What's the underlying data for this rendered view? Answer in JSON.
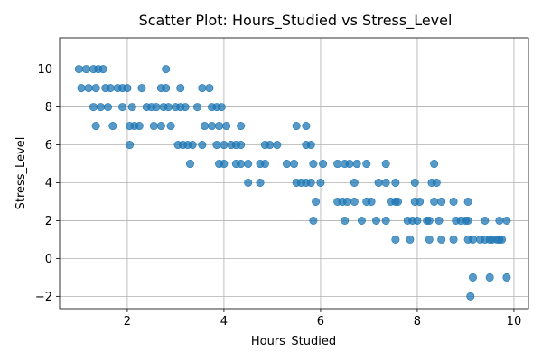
{
  "chart_data": {
    "type": "scatter",
    "title": "Scatter Plot: Hours_Studied vs Stress_Level",
    "xlabel": "Hours_Studied",
    "ylabel": "Stress_Level",
    "xlim": [
      0.6,
      10.3
    ],
    "ylim": [
      -2.65,
      11.65
    ],
    "xticks": [
      2,
      4,
      6,
      8,
      10
    ],
    "yticks": [
      -2,
      0,
      2,
      4,
      6,
      8,
      10
    ],
    "grid": true,
    "color": "#1f77b4",
    "alpha": 0.75,
    "points": [
      [
        1.0,
        10
      ],
      [
        1.15,
        10
      ],
      [
        1.3,
        10
      ],
      [
        1.4,
        10
      ],
      [
        1.5,
        10
      ],
      [
        2.8,
        10
      ],
      [
        1.05,
        9
      ],
      [
        1.2,
        9
      ],
      [
        1.35,
        9
      ],
      [
        1.55,
        9
      ],
      [
        1.65,
        9
      ],
      [
        1.8,
        9
      ],
      [
        1.9,
        9
      ],
      [
        2.0,
        9
      ],
      [
        2.3,
        9
      ],
      [
        2.7,
        9
      ],
      [
        2.8,
        9
      ],
      [
        3.1,
        9
      ],
      [
        3.55,
        9
      ],
      [
        3.7,
        9
      ],
      [
        1.3,
        8
      ],
      [
        1.45,
        8
      ],
      [
        1.6,
        8
      ],
      [
        1.9,
        8
      ],
      [
        2.1,
        8
      ],
      [
        2.4,
        8
      ],
      [
        2.5,
        8
      ],
      [
        2.6,
        8
      ],
      [
        2.75,
        8
      ],
      [
        2.85,
        8
      ],
      [
        3.0,
        8
      ],
      [
        3.1,
        8
      ],
      [
        3.2,
        8
      ],
      [
        3.45,
        8
      ],
      [
        3.75,
        8
      ],
      [
        3.85,
        8
      ],
      [
        3.95,
        8
      ],
      [
        1.35,
        7
      ],
      [
        1.7,
        7
      ],
      [
        2.05,
        7
      ],
      [
        2.15,
        7
      ],
      [
        2.25,
        7
      ],
      [
        2.55,
        7
      ],
      [
        2.7,
        7
      ],
      [
        2.9,
        7
      ],
      [
        3.6,
        7
      ],
      [
        3.75,
        7
      ],
      [
        3.9,
        7
      ],
      [
        4.05,
        7
      ],
      [
        4.35,
        7
      ],
      [
        5.5,
        7
      ],
      [
        5.7,
        7
      ],
      [
        2.05,
        6
      ],
      [
        3.05,
        6
      ],
      [
        3.15,
        6
      ],
      [
        3.25,
        6
      ],
      [
        3.35,
        6
      ],
      [
        3.55,
        6
      ],
      [
        3.85,
        6
      ],
      [
        4.0,
        6
      ],
      [
        4.15,
        6
      ],
      [
        4.25,
        6
      ],
      [
        4.35,
        6
      ],
      [
        4.85,
        6
      ],
      [
        4.95,
        6
      ],
      [
        5.1,
        6
      ],
      [
        5.7,
        6
      ],
      [
        5.8,
        6
      ],
      [
        3.3,
        5
      ],
      [
        3.9,
        5
      ],
      [
        4.0,
        5
      ],
      [
        4.25,
        5
      ],
      [
        4.35,
        5
      ],
      [
        4.5,
        5
      ],
      [
        4.75,
        5
      ],
      [
        4.85,
        5
      ],
      [
        5.3,
        5
      ],
      [
        5.45,
        5
      ],
      [
        5.85,
        5
      ],
      [
        6.05,
        5
      ],
      [
        6.35,
        5
      ],
      [
        6.5,
        5
      ],
      [
        6.6,
        5
      ],
      [
        6.75,
        5
      ],
      [
        6.95,
        5
      ],
      [
        7.35,
        5
      ],
      [
        8.35,
        5
      ],
      [
        4.5,
        4
      ],
      [
        4.75,
        4
      ],
      [
        5.5,
        4
      ],
      [
        5.6,
        4
      ],
      [
        5.7,
        4
      ],
      [
        5.8,
        4
      ],
      [
        6.0,
        4
      ],
      [
        6.7,
        4
      ],
      [
        7.2,
        4
      ],
      [
        7.35,
        4
      ],
      [
        7.55,
        4
      ],
      [
        7.95,
        4
      ],
      [
        8.3,
        4
      ],
      [
        8.4,
        4
      ],
      [
        5.9,
        3
      ],
      [
        6.35,
        3
      ],
      [
        6.45,
        3
      ],
      [
        6.55,
        3
      ],
      [
        6.7,
        3
      ],
      [
        6.95,
        3
      ],
      [
        7.05,
        3
      ],
      [
        7.45,
        3
      ],
      [
        7.55,
        3
      ],
      [
        7.6,
        3
      ],
      [
        7.95,
        3
      ],
      [
        8.05,
        3
      ],
      [
        8.35,
        3
      ],
      [
        8.5,
        3
      ],
      [
        8.75,
        3
      ],
      [
        9.05,
        3
      ],
      [
        5.85,
        2
      ],
      [
        6.5,
        2
      ],
      [
        6.85,
        2
      ],
      [
        7.15,
        2
      ],
      [
        7.35,
        2
      ],
      [
        7.8,
        2
      ],
      [
        7.9,
        2
      ],
      [
        8.0,
        2
      ],
      [
        8.2,
        2
      ],
      [
        8.25,
        2
      ],
      [
        8.45,
        2
      ],
      [
        8.8,
        2
      ],
      [
        8.9,
        2
      ],
      [
        9.0,
        2
      ],
      [
        9.05,
        2
      ],
      [
        9.4,
        2
      ],
      [
        9.7,
        2
      ],
      [
        9.85,
        2
      ],
      [
        7.55,
        1
      ],
      [
        7.85,
        1
      ],
      [
        8.25,
        1
      ],
      [
        8.5,
        1
      ],
      [
        8.75,
        1
      ],
      [
        9.05,
        1
      ],
      [
        9.15,
        1
      ],
      [
        9.3,
        1
      ],
      [
        9.4,
        1
      ],
      [
        9.5,
        1
      ],
      [
        9.55,
        1
      ],
      [
        9.65,
        1
      ],
      [
        9.7,
        1
      ],
      [
        9.75,
        1
      ],
      [
        9.15,
        -1
      ],
      [
        9.5,
        -1
      ],
      [
        9.85,
        -1
      ],
      [
        9.1,
        -2
      ]
    ]
  }
}
